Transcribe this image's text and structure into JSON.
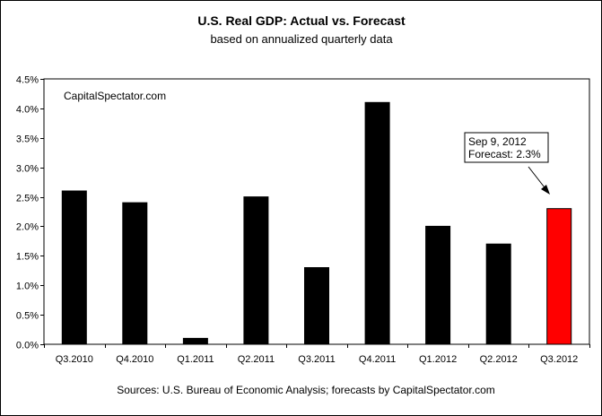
{
  "chart_data": {
    "type": "bar",
    "title": "U.S. Real GDP: Actual vs. Forecast",
    "subtitle": "based on annualized quarterly data",
    "watermark": "CapitalSpectator.com",
    "source": "Sources: U.S. Bureau of Economic Analysis; forecasts by CapitalSpectator.com",
    "categories": [
      "Q3.2010",
      "Q4.2010",
      "Q1.2011",
      "Q2.2011",
      "Q3.2011",
      "Q4.2011",
      "Q1.2012",
      "Q2.2012",
      "Q3.2012"
    ],
    "values": [
      2.6,
      2.4,
      0.1,
      2.5,
      1.3,
      4.1,
      2.0,
      1.7,
      2.3
    ],
    "bar_colors": [
      "#000000",
      "#000000",
      "#000000",
      "#000000",
      "#000000",
      "#000000",
      "#000000",
      "#000000",
      "#ff0000"
    ],
    "yticks": [
      "0.0%",
      "0.5%",
      "1.0%",
      "1.5%",
      "2.0%",
      "2.5%",
      "3.0%",
      "3.5%",
      "4.0%",
      "4.5%"
    ],
    "ylim": [
      0,
      4.5
    ],
    "y_unit": "%",
    "grid": false,
    "annotation": {
      "lines": [
        "Sep 9, 2012",
        "Forecast: 2.3%"
      ],
      "target": "Q3.2012"
    },
    "colors": {
      "actual": "#000000",
      "forecast": "#ff0000"
    }
  }
}
